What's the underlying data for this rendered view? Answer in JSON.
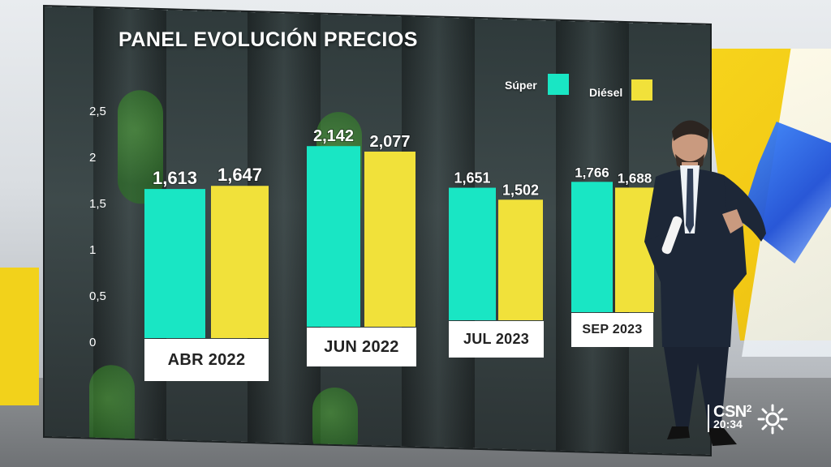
{
  "title": "PANEL EVOLUCIÓN PRECIOS",
  "legend": [
    {
      "label": "Súper",
      "color": "#19e6c4"
    },
    {
      "label": "Diésel",
      "color": "#f1e13a"
    }
  ],
  "chart_data": {
    "type": "bar",
    "title": "PANEL EVOLUCIÓN PRECIOS",
    "categories": [
      "ABR 2022",
      "JUN 2022",
      "JUL 2023",
      "SEP 2023"
    ],
    "series": [
      {
        "name": "Súper",
        "values": [
          1.613,
          2.142,
          1.651,
          1.766
        ],
        "labels": [
          "1,613",
          "2,142",
          "1,651",
          "1,766"
        ],
        "color": "#19e6c4"
      },
      {
        "name": "Diésel",
        "values": [
          1.647,
          2.077,
          1.502,
          1.688
        ],
        "labels": [
          "1,647",
          "2,077",
          "1,502",
          "1,688"
        ],
        "color": "#f1e13a"
      }
    ],
    "yticks": [
      "0",
      "0,5",
      "1",
      "1,5",
      "2",
      "2,5"
    ],
    "ytick_values": [
      0,
      0.5,
      1,
      1.5,
      2,
      2.5
    ],
    "ylim": [
      0,
      2.5
    ],
    "xlabel": "",
    "ylabel": "",
    "grid": false,
    "legend_position": "top-right"
  },
  "broadcast": {
    "channel": "CSN",
    "channel_sub": "2",
    "time": "20:34"
  }
}
